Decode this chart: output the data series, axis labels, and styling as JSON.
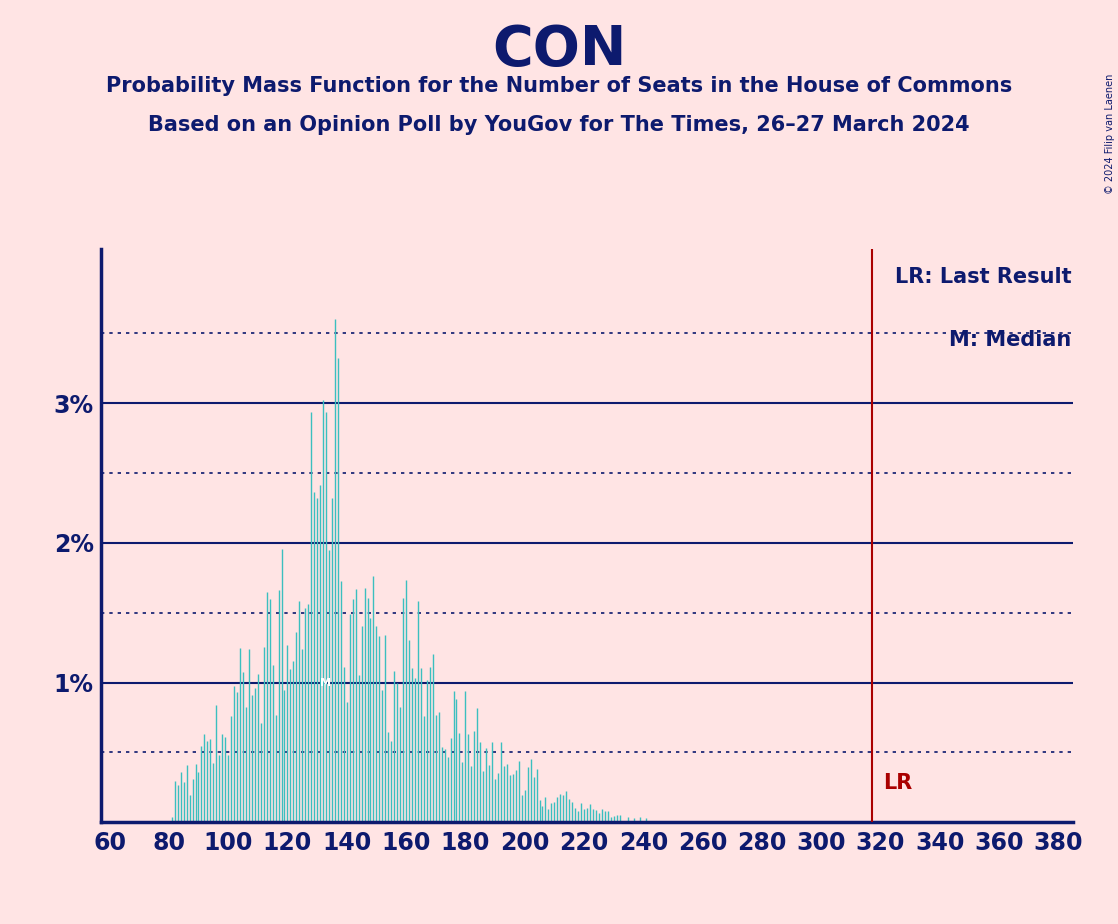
{
  "title": "CON",
  "subtitle1": "Probability Mass Function for the Number of Seats in the House of Commons",
  "subtitle2": "Based on an Opinion Poll by YouGov for The Times, 26–27 March 2024",
  "copyright": "© 2024 Filip van Laenen",
  "legend_lr": "LR: Last Result",
  "legend_m": "M: Median",
  "background_color": "#FFE4E4",
  "bar_color": "#3BBFBF",
  "axis_color": "#0D1A6E",
  "title_color": "#0D1A6E",
  "lr_color": "#AA0000",
  "lr_value": 317,
  "median_value": 133,
  "x_min": 57,
  "x_max": 385,
  "y_min": 0,
  "y_max": 0.041,
  "x_tick_step": 20,
  "x_tick_start": 60,
  "solid_grid_values": [
    0.01,
    0.02,
    0.03
  ],
  "dotted_grid_values": [
    0.005,
    0.015,
    0.025,
    0.035
  ],
  "ytick_labels": {
    "0.01": "1%",
    "0.02": "2%",
    "0.03": "3%"
  }
}
